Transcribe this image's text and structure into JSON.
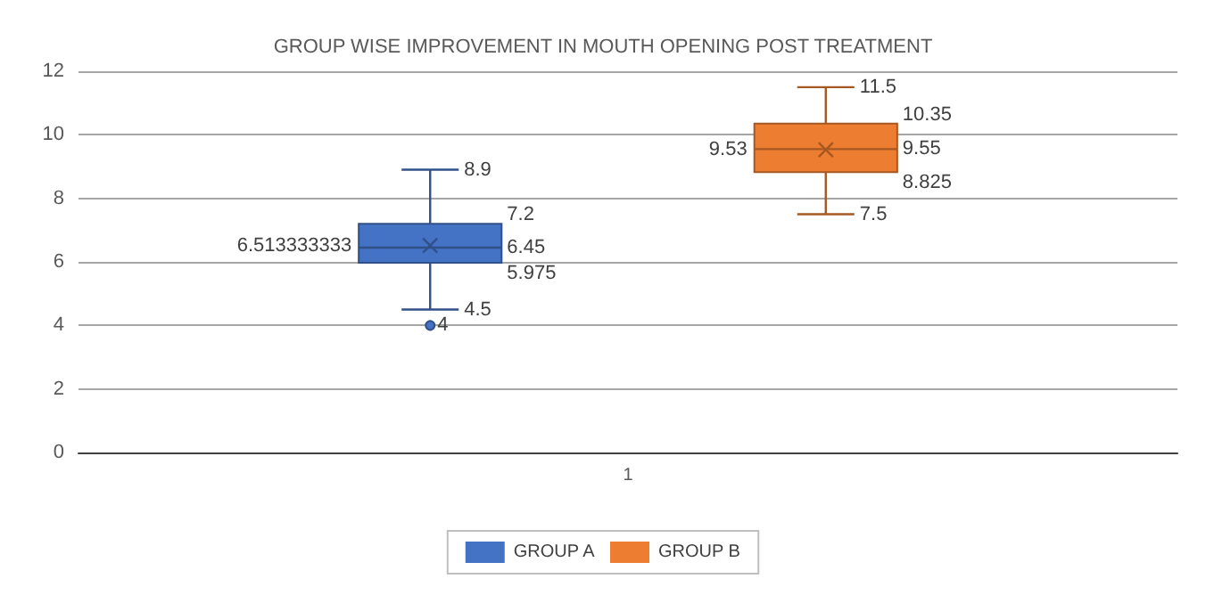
{
  "chart_data": {
    "type": "box",
    "title": "GROUP WISE IMPROVEMENT IN MOUTH OPENING POST TREATMENT",
    "categories": [
      "1"
    ],
    "series": [
      {
        "name": "GROUP A",
        "color": "#4472c4",
        "boxes": [
          {
            "low": 4.5,
            "q1": 5.975,
            "median": 6.45,
            "q3": 7.2,
            "high": 8.9,
            "mean": 6.513333333,
            "outliers": [
              4
            ]
          }
        ]
      },
      {
        "name": "GROUP B",
        "color": "#ed7d31",
        "boxes": [
          {
            "low": 7.5,
            "q1": 8.825,
            "median": 9.55,
            "q3": 10.35,
            "high": 11.5,
            "mean": 9.53
          }
        ]
      }
    ],
    "annotations": [
      "8.9",
      "7.2",
      "6.513333333",
      "6.45",
      "5.975",
      "4.5",
      "4",
      "11.5",
      "10.35",
      "9.53",
      "9.55",
      "8.825",
      "7.5"
    ],
    "ylim": [
      0,
      12
    ],
    "yticks": [
      0,
      2,
      4,
      6,
      8,
      10,
      12
    ],
    "grid": "y",
    "legend": "bottom"
  }
}
